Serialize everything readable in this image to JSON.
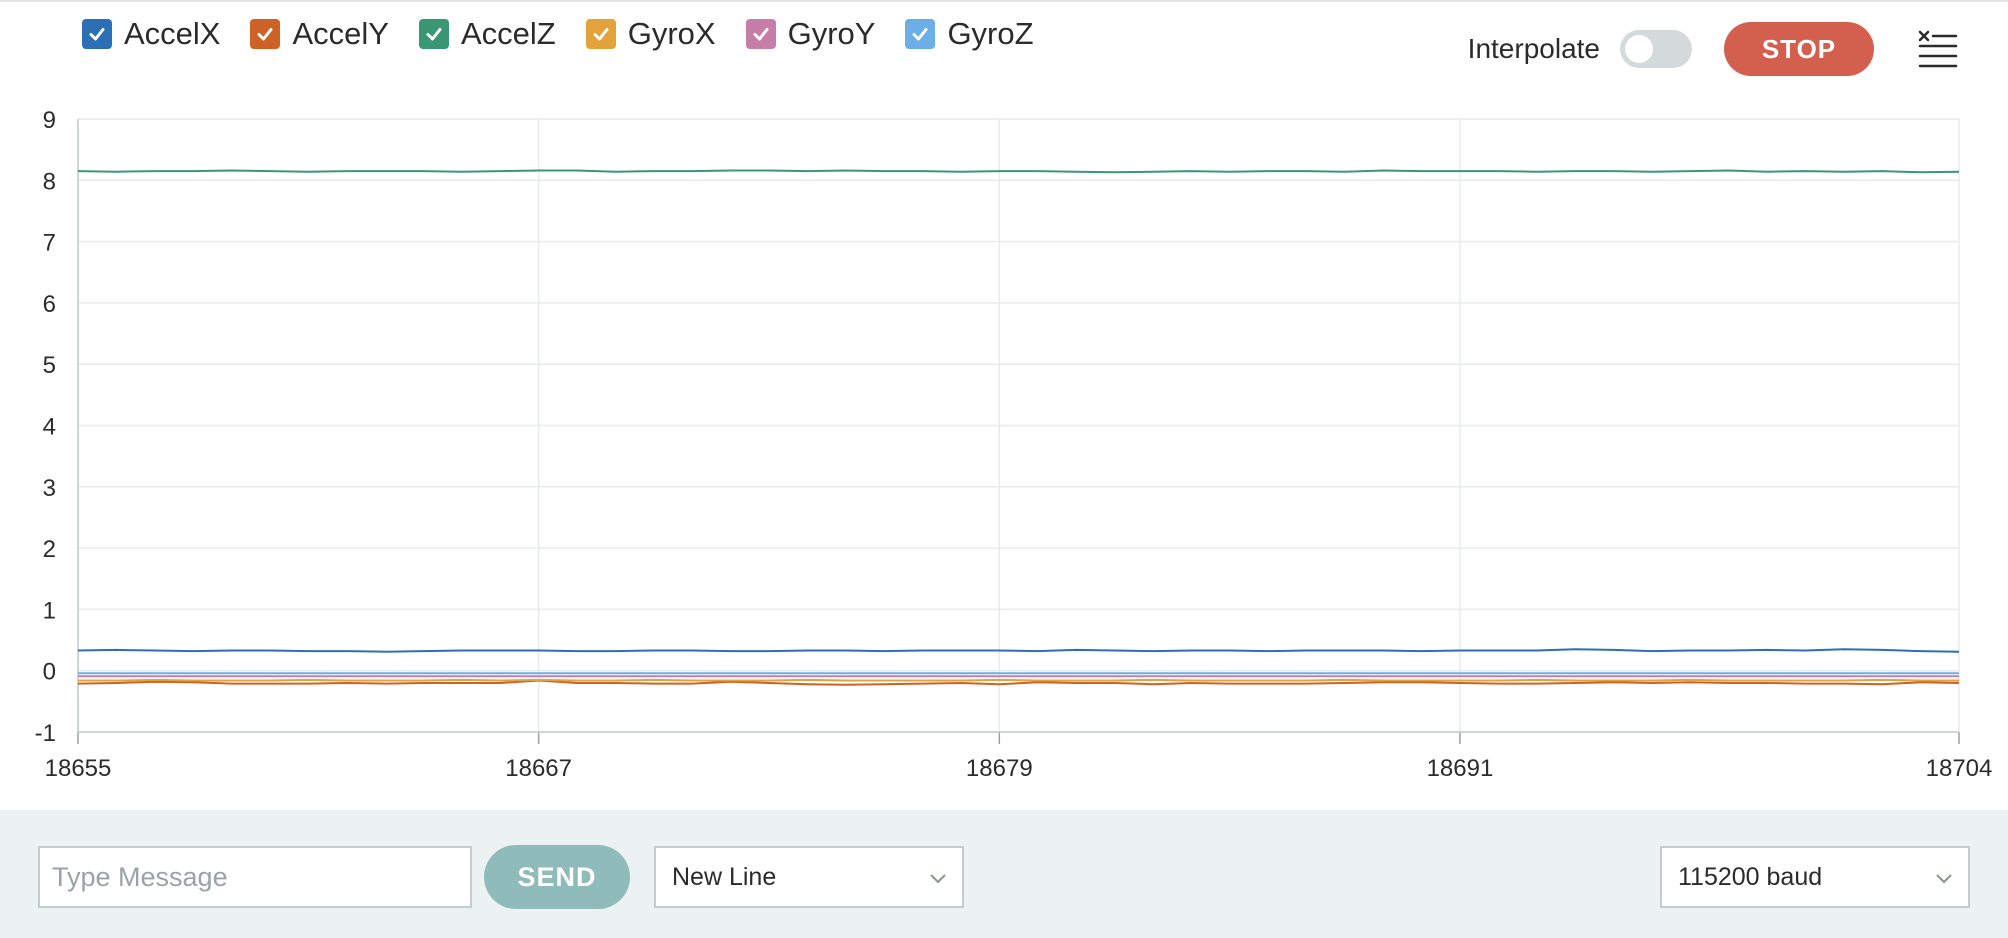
{
  "legend": {
    "items": [
      {
        "label": "AccelX",
        "color": "#2c6fb4",
        "checked": true
      },
      {
        "label": "AccelY",
        "color": "#cd6126",
        "checked": true
      },
      {
        "label": "AccelZ",
        "color": "#3a9774",
        "checked": true
      },
      {
        "label": "GyroX",
        "color": "#e3a33a",
        "checked": true
      },
      {
        "label": "GyroY",
        "color": "#c67ea9",
        "checked": true
      },
      {
        "label": "GyroZ",
        "color": "#6cafe6",
        "checked": true
      }
    ]
  },
  "controls": {
    "interpolate_label": "Interpolate",
    "interpolate_on": false,
    "stop_label": "STOP",
    "clear_icon": "clear-list-icon"
  },
  "chart_data": {
    "type": "line",
    "x": [
      18655,
      18656,
      18657,
      18658,
      18659,
      18660,
      18661,
      18662,
      18663,
      18664,
      18665,
      18666,
      18667,
      18668,
      18669,
      18670,
      18671,
      18672,
      18673,
      18674,
      18675,
      18676,
      18677,
      18678,
      18679,
      18680,
      18681,
      18682,
      18683,
      18684,
      18685,
      18686,
      18687,
      18688,
      18689,
      18690,
      18691,
      18692,
      18693,
      18694,
      18695,
      18696,
      18697,
      18698,
      18699,
      18700,
      18701,
      18702,
      18703,
      18704
    ],
    "xticks": [
      18655,
      18667,
      18679,
      18691,
      18704
    ],
    "yticks": [
      -1,
      0,
      1,
      2,
      3,
      4,
      5,
      6,
      7,
      8,
      9
    ],
    "ylim": [
      -1,
      9
    ],
    "xlim": [
      18655,
      18704
    ],
    "grid": true,
    "series": [
      {
        "name": "AccelX",
        "color": "#2c6fb4",
        "values": [
          0.33,
          0.34,
          0.33,
          0.32,
          0.33,
          0.33,
          0.32,
          0.32,
          0.31,
          0.32,
          0.33,
          0.33,
          0.33,
          0.32,
          0.32,
          0.33,
          0.33,
          0.32,
          0.32,
          0.33,
          0.33,
          0.32,
          0.33,
          0.33,
          0.33,
          0.32,
          0.34,
          0.33,
          0.32,
          0.33,
          0.33,
          0.32,
          0.33,
          0.33,
          0.33,
          0.32,
          0.33,
          0.33,
          0.33,
          0.35,
          0.34,
          0.32,
          0.33,
          0.33,
          0.34,
          0.33,
          0.35,
          0.34,
          0.32,
          0.31
        ]
      },
      {
        "name": "AccelY",
        "color": "#cd6126",
        "values": [
          -0.21,
          -0.2,
          -0.18,
          -0.19,
          -0.21,
          -0.21,
          -0.21,
          -0.2,
          -0.21,
          -0.2,
          -0.2,
          -0.2,
          -0.16,
          -0.2,
          -0.2,
          -0.21,
          -0.21,
          -0.18,
          -0.2,
          -0.22,
          -0.23,
          -0.22,
          -0.21,
          -0.2,
          -0.22,
          -0.19,
          -0.2,
          -0.2,
          -0.22,
          -0.2,
          -0.21,
          -0.21,
          -0.21,
          -0.2,
          -0.19,
          -0.19,
          -0.2,
          -0.21,
          -0.21,
          -0.2,
          -0.19,
          -0.2,
          -0.19,
          -0.2,
          -0.2,
          -0.21,
          -0.21,
          -0.22,
          -0.19,
          -0.2
        ]
      },
      {
        "name": "AccelZ",
        "color": "#3a9774",
        "values": [
          8.15,
          8.14,
          8.15,
          8.15,
          8.16,
          8.15,
          8.14,
          8.15,
          8.15,
          8.15,
          8.14,
          8.15,
          8.16,
          8.16,
          8.14,
          8.15,
          8.15,
          8.16,
          8.16,
          8.15,
          8.16,
          8.15,
          8.15,
          8.14,
          8.15,
          8.15,
          8.14,
          8.13,
          8.14,
          8.15,
          8.14,
          8.15,
          8.15,
          8.14,
          8.16,
          8.15,
          8.15,
          8.15,
          8.14,
          8.15,
          8.15,
          8.14,
          8.15,
          8.16,
          8.14,
          8.15,
          8.14,
          8.15,
          8.13,
          8.14
        ]
      },
      {
        "name": "GyroX",
        "color": "#e3a33a",
        "values": [
          -0.16,
          -0.16,
          -0.15,
          -0.16,
          -0.16,
          -0.16,
          -0.15,
          -0.16,
          -0.16,
          -0.16,
          -0.15,
          -0.16,
          -0.15,
          -0.16,
          -0.16,
          -0.15,
          -0.16,
          -0.16,
          -0.16,
          -0.15,
          -0.16,
          -0.16,
          -0.16,
          -0.16,
          -0.15,
          -0.16,
          -0.16,
          -0.16,
          -0.15,
          -0.16,
          -0.16,
          -0.16,
          -0.16,
          -0.15,
          -0.16,
          -0.16,
          -0.16,
          -0.16,
          -0.15,
          -0.16,
          -0.16,
          -0.16,
          -0.15,
          -0.16,
          -0.16,
          -0.16,
          -0.16,
          -0.15,
          -0.16,
          -0.16
        ]
      },
      {
        "name": "GyroY",
        "color": "#c67ea9",
        "values": [
          -0.09,
          -0.09,
          -0.09,
          -0.09,
          -0.09,
          -0.09,
          -0.09,
          -0.09,
          -0.09,
          -0.09,
          -0.09,
          -0.09,
          -0.09,
          -0.09,
          -0.09,
          -0.09,
          -0.09,
          -0.09,
          -0.09,
          -0.09,
          -0.09,
          -0.09,
          -0.09,
          -0.09,
          -0.09,
          -0.09,
          -0.09,
          -0.09,
          -0.09,
          -0.09,
          -0.09,
          -0.09,
          -0.09,
          -0.09,
          -0.09,
          -0.09,
          -0.09,
          -0.09,
          -0.09,
          -0.09,
          -0.09,
          -0.09,
          -0.09,
          -0.09,
          -0.09,
          -0.09,
          -0.09,
          -0.09,
          -0.09,
          -0.09
        ]
      },
      {
        "name": "GyroZ",
        "color": "#6cafe6",
        "values": [
          -0.04,
          -0.04,
          -0.04,
          -0.04,
          -0.04,
          -0.04,
          -0.04,
          -0.04,
          -0.04,
          -0.04,
          -0.04,
          -0.04,
          -0.04,
          -0.04,
          -0.04,
          -0.04,
          -0.04,
          -0.04,
          -0.04,
          -0.04,
          -0.04,
          -0.04,
          -0.04,
          -0.04,
          -0.04,
          -0.04,
          -0.04,
          -0.04,
          -0.04,
          -0.04,
          -0.04,
          -0.04,
          -0.04,
          -0.04,
          -0.04,
          -0.04,
          -0.04,
          -0.04,
          -0.04,
          -0.04,
          -0.04,
          -0.04,
          -0.04,
          -0.04,
          -0.04,
          -0.04,
          -0.04,
          -0.04,
          -0.04,
          -0.04
        ]
      }
    ]
  },
  "footer": {
    "message_placeholder": "Type Message",
    "message_value": "",
    "send_label": "SEND",
    "line_ending_selected": "New Line",
    "baud_selected": "115200 baud"
  }
}
